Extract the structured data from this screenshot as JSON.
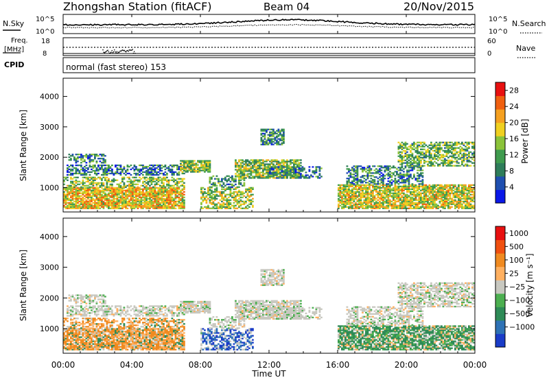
{
  "header": {
    "title": "Zhongshan Station (fitACF)",
    "beam": "Beam 04",
    "date": "20/Nov/2015"
  },
  "top_panels": {
    "nsky_label": "N.Sky",
    "nsky_scale": [
      "10^5",
      "10^0"
    ],
    "nsearch_label": "N.Search",
    "nsearch_scale": [
      "10^5",
      "10^0"
    ],
    "freq_label": "Freq.",
    "freq_unit": "[MHz]",
    "freq_scale": [
      "18",
      "8"
    ],
    "nave_label": "Nave",
    "nave_scale": [
      "60",
      "0"
    ],
    "cpid_label": "CPID",
    "cpid_text": "normal (fast stereo) 153"
  },
  "colors": {
    "power_scale": [
      "#0a18e8",
      "#1f4fb0",
      "#2e7d5a",
      "#3f9b4e",
      "#8bc33a",
      "#f0d020",
      "#f5a020",
      "#f06010",
      "#e81010"
    ],
    "velocity_scale": [
      "#1a3cc8",
      "#2e72b5",
      "#2e8b57",
      "#4caf50",
      "#c8c8c0",
      "#ffb060",
      "#f08a20",
      "#f05010",
      "#e81010"
    ]
  },
  "chart_data": [
    {
      "type": "heatmap",
      "name": "power",
      "ylabel": "Slant Range [km]",
      "xlabel": "Time UT",
      "x_ticks": [
        "00:00",
        "04:00",
        "08:00",
        "12:00",
        "16:00",
        "20:00",
        "00:00"
      ],
      "y_ticks": [
        1000,
        2000,
        3000,
        4000
      ],
      "ylim": [
        200,
        4600
      ],
      "colorbar": {
        "label": "Power [dB]",
        "ticks": [
          "4",
          "8",
          "12",
          "16",
          "20",
          "24",
          "28"
        ],
        "range": [
          0,
          30
        ]
      }
    },
    {
      "type": "heatmap",
      "name": "velocity",
      "ylabel": "Slant Range [km]",
      "xlabel": "Time UT",
      "x_ticks": [
        "00:00",
        "04:00",
        "08:00",
        "12:00",
        "16:00",
        "20:00",
        "00:00"
      ],
      "y_ticks": [
        1000,
        2000,
        3000,
        4000
      ],
      "ylim": [
        200,
        4600
      ],
      "colorbar": {
        "label": "Velocity [m s⁻¹]",
        "ticks": [
          "1000",
          "500",
          "100",
          "25",
          "−25",
          "−100",
          "−500",
          "−1000"
        ]
      }
    }
  ]
}
